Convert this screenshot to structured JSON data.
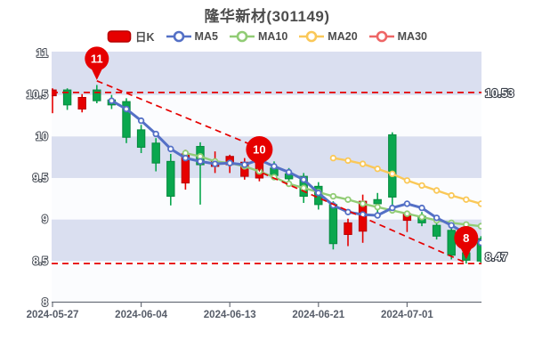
{
  "title": "隆华新材(301149)",
  "legend": {
    "items": [
      {
        "label": "日K",
        "type": "candle",
        "color": "#e60000",
        "border": "#b80000"
      },
      {
        "label": "MA5",
        "type": "line",
        "color": "#5470c6"
      },
      {
        "label": "MA10",
        "type": "line",
        "color": "#91cc75"
      },
      {
        "label": "MA20",
        "type": "line",
        "color": "#fac858"
      },
      {
        "label": "MA30",
        "type": "line",
        "color": "#ee6666"
      }
    ]
  },
  "chart_data": {
    "type": "candlestick",
    "title": "隆华新材(301149)",
    "ylim": [
      8,
      11
    ],
    "y_ticks": [
      "11",
      "10.5",
      "10",
      "9.5",
      "9",
      "8.5",
      "8"
    ],
    "y_tick_values": [
      11,
      10.5,
      10,
      9.5,
      9,
      8.5,
      8
    ],
    "x_axis_labels": [
      "2024-05-27",
      "2024-06-04",
      "2024-06-13",
      "2024-06-21",
      "2024-07-01"
    ],
    "x_label_indices": [
      0,
      6,
      12,
      18,
      24
    ],
    "band_pairs": [
      [
        11,
        10.5
      ],
      [
        10,
        9.5
      ],
      [
        9,
        8.5
      ]
    ],
    "colors": {
      "up": "#e60000",
      "up_border": "#b80000",
      "down": "#0aa74e",
      "down_border": "#078a3f",
      "band": "#dadff0",
      "plot_bg": "#fbfcfe",
      "dashed": "#e60000",
      "axis": "#6a6f79",
      "marker_pin": "#e60000"
    },
    "candles_ohlc": [
      [
        10.49,
        10.58,
        10.28,
        10.56
      ],
      [
        10.56,
        10.58,
        10.32,
        10.38
      ],
      [
        10.33,
        10.51,
        10.29,
        10.47
      ],
      [
        10.56,
        10.62,
        10.4,
        10.43
      ],
      [
        10.44,
        10.5,
        10.33,
        10.38
      ],
      [
        10.42,
        10.46,
        9.92,
        9.99
      ],
      [
        10.08,
        10.14,
        9.8,
        9.87
      ],
      [
        9.92,
        9.98,
        9.58,
        9.68
      ],
      [
        9.7,
        9.79,
        9.17,
        9.28
      ],
      [
        9.44,
        9.84,
        9.36,
        9.79
      ],
      [
        9.88,
        9.93,
        9.18,
        9.66
      ],
      [
        9.64,
        9.82,
        9.56,
        9.7
      ],
      [
        9.66,
        9.78,
        9.56,
        9.76
      ],
      [
        9.52,
        9.74,
        9.48,
        9.69
      ],
      [
        9.5,
        10.0,
        9.46,
        9.8
      ],
      [
        9.62,
        9.7,
        9.48,
        9.53
      ],
      [
        9.55,
        9.62,
        9.44,
        9.49
      ],
      [
        9.52,
        9.56,
        9.2,
        9.28
      ],
      [
        9.4,
        9.45,
        9.12,
        9.18
      ],
      [
        9.18,
        9.22,
        8.64,
        8.71
      ],
      [
        8.82,
        9.01,
        8.68,
        8.96
      ],
      [
        8.86,
        9.3,
        8.72,
        9.22
      ],
      [
        9.24,
        9.32,
        9.08,
        9.19
      ],
      [
        10.02,
        10.05,
        9.12,
        9.27
      ],
      [
        8.99,
        9.1,
        8.85,
        9.07
      ],
      [
        9.04,
        9.09,
        8.92,
        8.96
      ],
      [
        8.93,
        8.97,
        8.76,
        8.8
      ],
      [
        8.87,
        8.9,
        8.52,
        8.57
      ],
      [
        8.6,
        8.66,
        8.47,
        8.51
      ],
      [
        8.77,
        8.8,
        8.47,
        8.5
      ]
    ],
    "series": [
      {
        "name": "MA5",
        "color": "#5470c6",
        "start_index": 4,
        "values": [
          10.43,
          10.33,
          10.19,
          10.03,
          9.85,
          9.74,
          9.7,
          9.67,
          9.68,
          9.66,
          9.72,
          9.64,
          9.57,
          9.48,
          9.32,
          9.17,
          9.09,
          9.06,
          9.05,
          9.14,
          9.19,
          9.14,
          9.02,
          8.93,
          8.83,
          8.72
        ]
      },
      {
        "name": "MA10",
        "color": "#91cc75",
        "start_index": 9,
        "values": [
          9.8,
          9.76,
          9.7,
          9.68,
          9.64,
          9.58,
          9.51,
          9.43,
          9.38,
          9.33,
          9.28,
          9.24,
          9.19,
          9.15,
          9.11,
          9.07,
          9.03,
          8.99,
          8.96,
          8.94,
          8.92
        ]
      },
      {
        "name": "MA20",
        "color": "#fac858",
        "start_index": 19,
        "values": [
          9.74,
          9.71,
          9.67,
          9.61,
          9.55,
          9.47,
          9.41,
          9.35,
          9.29,
          9.24,
          9.19
        ]
      },
      {
        "name": "MA30",
        "color": "#ee6666",
        "start_index": null,
        "values": []
      }
    ],
    "markers": [
      {
        "label": "11",
        "index": 3,
        "tip_price": 10.68,
        "r": 13.5
      },
      {
        "label": "10",
        "index": 14,
        "tip_price": 9.57,
        "r": 15
      },
      {
        "label": "8",
        "index": 28,
        "tip_price": 8.52,
        "r": 13.5
      }
    ],
    "ref_lines": [
      {
        "kind": "horizontal",
        "value": 10.53,
        "label": "10.53"
      },
      {
        "kind": "horizontal",
        "value": 8.47,
        "label": "8.47"
      },
      {
        "kind": "trend",
        "from": [
          3,
          10.67
        ],
        "to": [
          14,
          9.86
        ]
      },
      {
        "kind": "trend",
        "from": [
          14.2,
          9.56
        ],
        "to": [
          28.1,
          8.47
        ]
      }
    ]
  }
}
